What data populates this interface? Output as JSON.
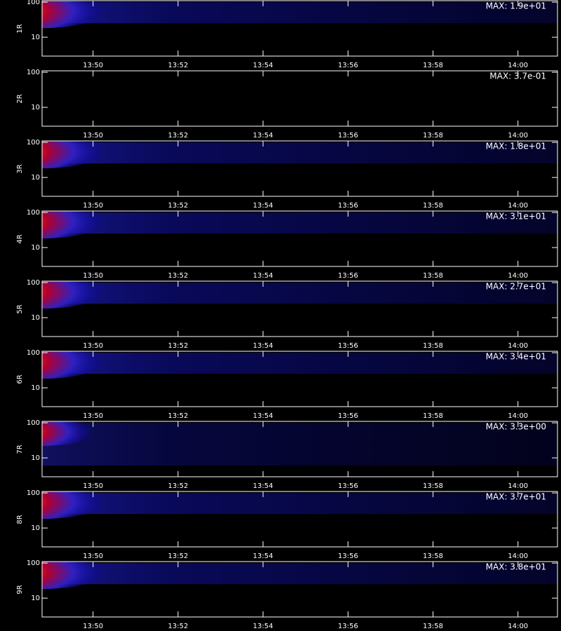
{
  "chart_data": [
    {
      "type": "heatmap",
      "ylabel": "1R",
      "annotation": "MAX: 1.9e+01",
      "log_y": true,
      "ylim": [
        2.9,
        110
      ],
      "yticks": [
        10,
        100
      ],
      "xlim": [
        828.8,
        840.93
      ],
      "xticks": [
        {
          "value": 830,
          "label": "13:50"
        },
        {
          "value": 832,
          "label": "13:52"
        },
        {
          "value": 834,
          "label": "13:54"
        },
        {
          "value": 836,
          "label": "13:56"
        },
        {
          "value": 838,
          "label": "13:58"
        },
        {
          "value": 840,
          "label": "14:00"
        }
      ]
    },
    {
      "type": "heatmap",
      "ylabel": "2R",
      "annotation": "MAX: 3.7e-01",
      "log_y": true,
      "ylim": [
        2.9,
        110
      ],
      "yticks": [
        10,
        100
      ],
      "xlim": [
        828.8,
        840.93
      ],
      "xticks": [
        {
          "value": 830,
          "label": "13:50"
        },
        {
          "value": 832,
          "label": "13:52"
        },
        {
          "value": 834,
          "label": "13:54"
        },
        {
          "value": 836,
          "label": "13:56"
        },
        {
          "value": 838,
          "label": "13:58"
        },
        {
          "value": 840,
          "label": "14:00"
        }
      ]
    },
    {
      "type": "heatmap",
      "ylabel": "3R",
      "annotation": "MAX: 1.8e+01",
      "log_y": true,
      "ylim": [
        2.9,
        110
      ],
      "yticks": [
        10,
        100
      ],
      "xlim": [
        828.8,
        840.93
      ],
      "xticks": [
        {
          "value": 830,
          "label": "13:50"
        },
        {
          "value": 832,
          "label": "13:52"
        },
        {
          "value": 834,
          "label": "13:54"
        },
        {
          "value": 836,
          "label": "13:56"
        },
        {
          "value": 838,
          "label": "13:58"
        },
        {
          "value": 840,
          "label": "14:00"
        }
      ]
    },
    {
      "type": "heatmap",
      "ylabel": "4R",
      "annotation": "MAX: 3.1e+01",
      "log_y": true,
      "ylim": [
        2.9,
        110
      ],
      "yticks": [
        10,
        100
      ],
      "xlim": [
        828.8,
        840.93
      ],
      "xticks": [
        {
          "value": 830,
          "label": "13:50"
        },
        {
          "value": 832,
          "label": "13:52"
        },
        {
          "value": 834,
          "label": "13:54"
        },
        {
          "value": 836,
          "label": "13:56"
        },
        {
          "value": 838,
          "label": "13:58"
        },
        {
          "value": 840,
          "label": "14:00"
        }
      ]
    },
    {
      "type": "heatmap",
      "ylabel": "5R",
      "annotation": "MAX: 2.7e+01",
      "log_y": true,
      "ylim": [
        2.9,
        110
      ],
      "yticks": [
        10,
        100
      ],
      "xlim": [
        828.8,
        840.93
      ],
      "xticks": [
        {
          "value": 830,
          "label": "13:50"
        },
        {
          "value": 832,
          "label": "13:52"
        },
        {
          "value": 834,
          "label": "13:54"
        },
        {
          "value": 836,
          "label": "13:56"
        },
        {
          "value": 838,
          "label": "13:58"
        },
        {
          "value": 840,
          "label": "14:00"
        }
      ]
    },
    {
      "type": "heatmap",
      "ylabel": "6R",
      "annotation": "MAX: 3.4e+01",
      "log_y": true,
      "ylim": [
        2.9,
        110
      ],
      "yticks": [
        10,
        100
      ],
      "xlim": [
        828.8,
        840.93
      ],
      "xticks": [
        {
          "value": 830,
          "label": "13:50"
        },
        {
          "value": 832,
          "label": "13:52"
        },
        {
          "value": 834,
          "label": "13:54"
        },
        {
          "value": 836,
          "label": "13:56"
        },
        {
          "value": 838,
          "label": "13:58"
        },
        {
          "value": 840,
          "label": "14:00"
        }
      ]
    },
    {
      "type": "heatmap",
      "ylabel": "7R",
      "annotation": "MAX: 3.3e+00",
      "log_y": true,
      "ylim": [
        2.9,
        110
      ],
      "yticks": [
        10,
        100
      ],
      "xlim": [
        828.8,
        840.93
      ],
      "xticks": [
        {
          "value": 830,
          "label": "13:50"
        },
        {
          "value": 832,
          "label": "13:52"
        },
        {
          "value": 834,
          "label": "13:54"
        },
        {
          "value": 836,
          "label": "13:56"
        },
        {
          "value": 838,
          "label": "13:58"
        },
        {
          "value": 840,
          "label": "14:00"
        }
      ]
    },
    {
      "type": "heatmap",
      "ylabel": "8R",
      "annotation": "MAX: 3.7e+01",
      "log_y": true,
      "ylim": [
        2.9,
        110
      ],
      "yticks": [
        10,
        100
      ],
      "xlim": [
        828.8,
        840.93
      ],
      "xticks": [
        {
          "value": 830,
          "label": "13:50"
        },
        {
          "value": 832,
          "label": "13:52"
        },
        {
          "value": 834,
          "label": "13:54"
        },
        {
          "value": 836,
          "label": "13:56"
        },
        {
          "value": 838,
          "label": "13:58"
        },
        {
          "value": 840,
          "label": "14:00"
        }
      ]
    },
    {
      "type": "heatmap",
      "ylabel": "9R",
      "annotation": "MAX: 3.8e+01",
      "log_y": true,
      "ylim": [
        2.9,
        110
      ],
      "yticks": [
        10,
        100
      ],
      "xlim": [
        828.8,
        840.93
      ],
      "xticks": [
        {
          "value": 830,
          "label": "13:50"
        },
        {
          "value": 832,
          "label": "13:52"
        },
        {
          "value": 834,
          "label": "13:54"
        },
        {
          "value": 836,
          "label": "13:56"
        },
        {
          "value": 838,
          "label": "13:58"
        },
        {
          "value": 840,
          "label": "14:00"
        }
      ]
    }
  ]
}
